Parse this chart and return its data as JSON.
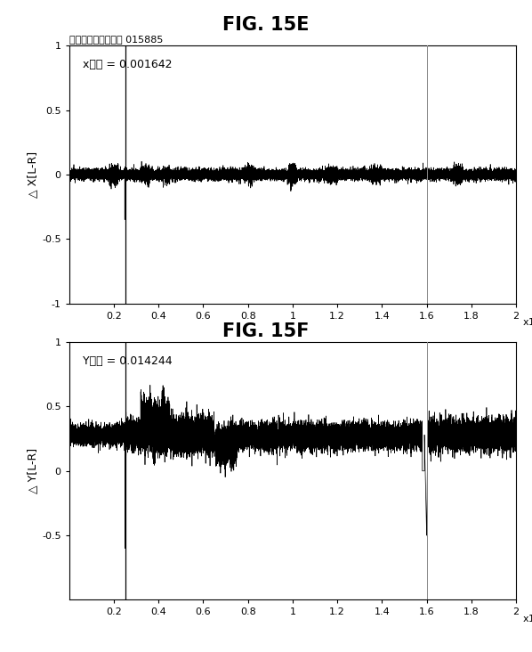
{
  "fig15e_title": "FIG. 15E",
  "fig15f_title": "FIG. 15F",
  "suptitle_e": "正常な対照の全分散 015885",
  "annotation_e": "x分散 = 0.001642",
  "annotation_f": "Y分散 = 0.014244",
  "ylabel_e": "△ X[L-R]",
  "ylabel_f": "△ Y[L-R]",
  "xlim": [
    0,
    20000
  ],
  "ylim_e": [
    -1,
    1
  ],
  "ylim_f": [
    -1,
    1
  ],
  "xticks": [
    2000,
    4000,
    6000,
    8000,
    10000,
    12000,
    14000,
    16000,
    18000,
    20000
  ],
  "xtick_labels": [
    "0.2",
    "0.4",
    "0.6",
    "0.8",
    "1",
    "1.2",
    "1.4",
    "1.6",
    "1.8",
    "2"
  ],
  "yticks_e": [
    -1,
    -0.5,
    0,
    0.5,
    1
  ],
  "ytick_labels_e": [
    "-1",
    "-0.5",
    "0",
    "0.5",
    "1"
  ],
  "yticks_f": [
    -0.5,
    0,
    0.5,
    1
  ],
  "ytick_labels_f": [
    "-0.5",
    "0",
    "0.5",
    "1"
  ],
  "vline1_x": 2500,
  "vline2_x": 16000,
  "seed": 42,
  "n_points": 20000,
  "background_color": "#ffffff",
  "line_color": "#000000",
  "vline_color_dark": "#000000",
  "vline_color_gray": "#888888"
}
